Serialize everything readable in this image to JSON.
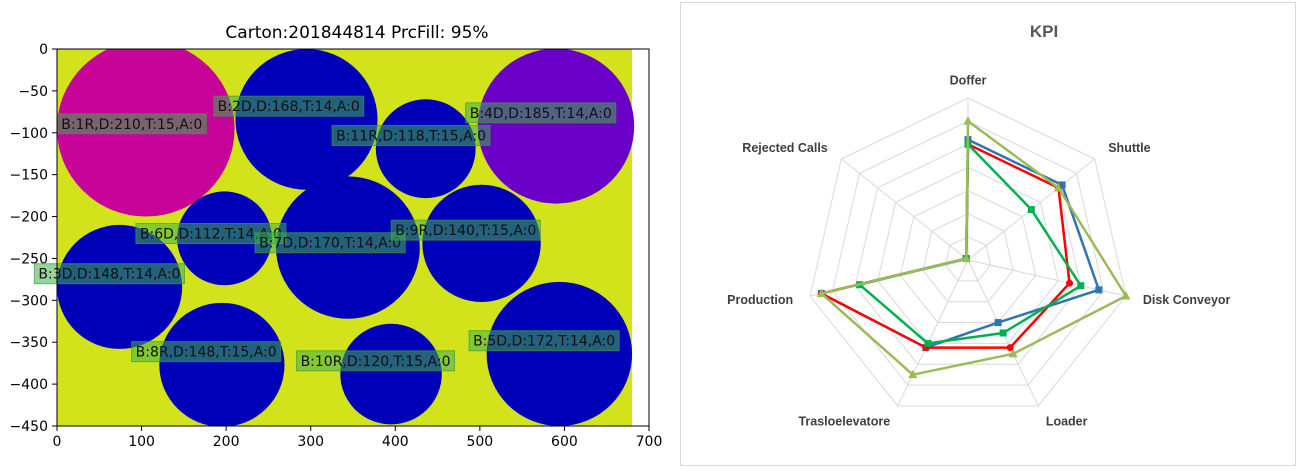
{
  "chart_data": [
    {
      "type": "scatter",
      "title": "Carton:201844814 PrcFill: 95%",
      "xlim": [
        0,
        700
      ],
      "ylim": [
        -450,
        0
      ],
      "xticks": [
        "0",
        "100",
        "200",
        "300",
        "400",
        "500",
        "600",
        "700"
      ],
      "yticks": [
        "0",
        "−50",
        "−100",
        "−150",
        "−200",
        "−250",
        "−300",
        "−350",
        "−400",
        "−450"
      ],
      "container": {
        "width": 680,
        "height": 450,
        "color": "#d2e21b"
      },
      "label_box_color": "#3fb04a",
      "circles": [
        {
          "label": "B:1R,D:210,T:15,A:0",
          "x": 105,
          "y": -95,
          "d": 210,
          "color": "#c8039a",
          "label_x": 5,
          "label_y": -94
        },
        {
          "label": "B:2D,D:168,T:14,A:0",
          "x": 295,
          "y": -84,
          "d": 168,
          "color": "#0000b8",
          "label_x": 190,
          "label_y": -73
        },
        {
          "label": "B:4D,D:185,T:14,A:0",
          "x": 590,
          "y": -92,
          "d": 185,
          "color": "#6a00c8",
          "label_x": 488,
          "label_y": -81
        },
        {
          "label": "B:11R,D:118,T:15,A:0",
          "x": 436,
          "y": -119,
          "d": 118,
          "color": "#0000b8",
          "label_x": 330,
          "label_y": -108
        },
        {
          "label": "B:6D,D:112,T:14,A:0",
          "x": 198,
          "y": -226,
          "d": 112,
          "color": "#0000b8",
          "label_x": 98,
          "label_y": -225
        },
        {
          "label": "B:7D,D:170,T:14,A:0",
          "x": 344,
          "y": -237,
          "d": 170,
          "color": "#0000b8",
          "label_x": 239,
          "label_y": -236
        },
        {
          "label": "B:9R,D:140,T:15,A:0",
          "x": 502,
          "y": -232,
          "d": 140,
          "color": "#0000b8",
          "label_x": 400,
          "label_y": -221
        },
        {
          "label": "B:3D,D:148,T:14,A:0",
          "x": 74,
          "y": -284,
          "d": 148,
          "color": "#0000b8",
          "label_x": -22,
          "label_y": -273
        },
        {
          "label": "B:8R,D:148,T:15,A:0",
          "x": 195,
          "y": -377,
          "d": 148,
          "color": "#0000b8",
          "label_x": 93,
          "label_y": -366
        },
        {
          "label": "B:10R,D:120,T:15,A:0",
          "x": 395,
          "y": -388,
          "d": 120,
          "color": "#0000b8",
          "label_x": 288,
          "label_y": -377
        },
        {
          "label": "B:5D,D:172,T:14,A:0",
          "x": 594,
          "y": -364,
          "d": 172,
          "color": "#0000b8",
          "label_x": 492,
          "label_y": -353
        }
      ]
    },
    {
      "type": "radar",
      "title": "KPI",
      "axes": [
        "Doffer",
        "Shuttle",
        "Disk Conveyor",
        "Loader",
        "Trasloelevatore",
        "Production",
        "Rejected Calls"
      ],
      "rmax": 7,
      "rings": 7,
      "series": [
        {
          "color": "#2e75b6",
          "marker": "square",
          "values": [
            5.2,
            5.2,
            5.8,
            3.0,
            4.2,
            6.5,
            0.1
          ]
        },
        {
          "color": "#ff0000",
          "marker": "circle",
          "values": [
            5.0,
            5.0,
            4.5,
            4.2,
            4.2,
            6.5,
            0.1
          ]
        },
        {
          "color": "#00b050",
          "marker": "square",
          "values": [
            5.0,
            3.5,
            5.0,
            3.5,
            4.0,
            4.8,
            0.1
          ]
        },
        {
          "color": "#9bbb59",
          "marker": "triangle",
          "values": [
            6.0,
            5.0,
            7.0,
            4.5,
            5.5,
            6.5,
            0.1
          ]
        }
      ]
    }
  ]
}
